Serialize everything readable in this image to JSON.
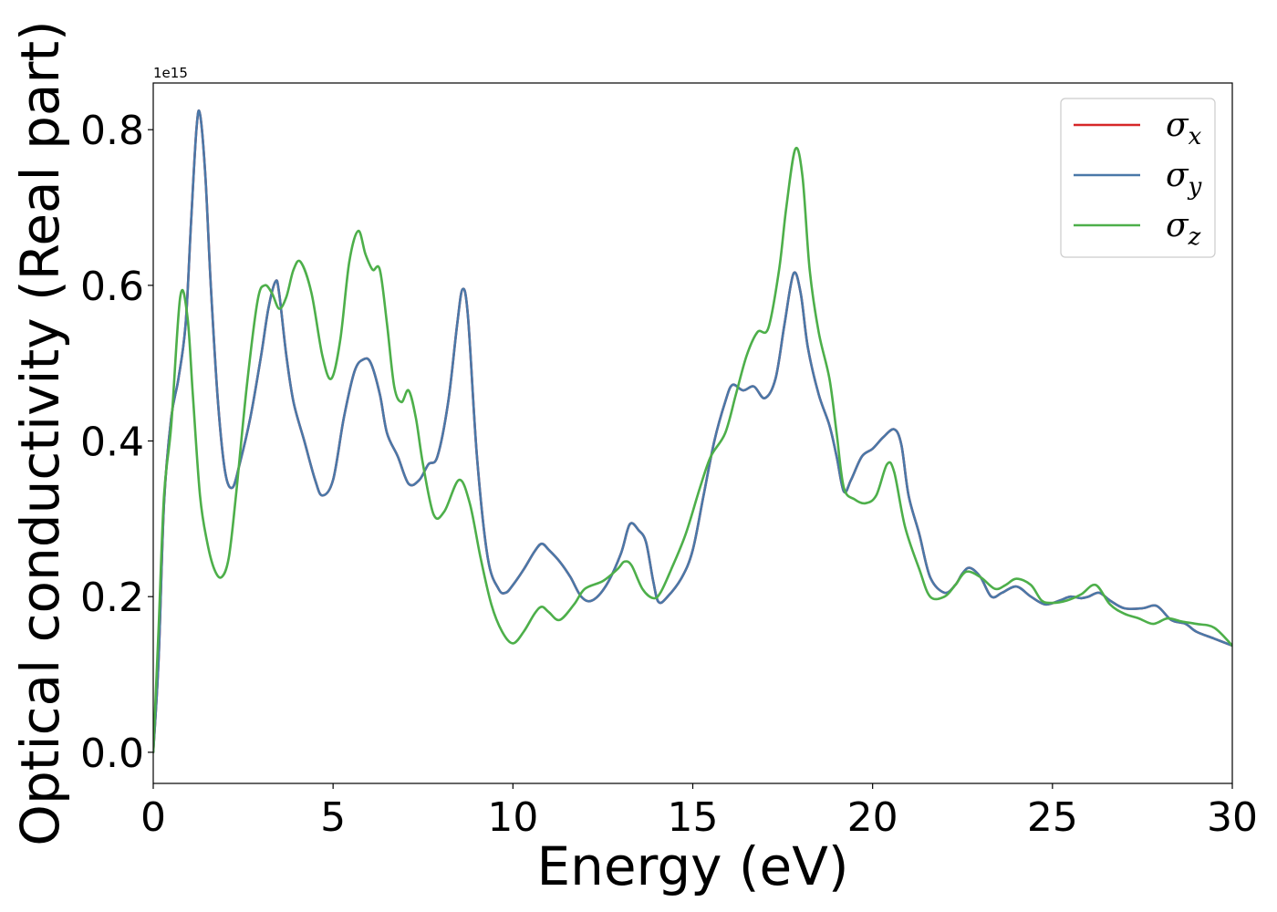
{
  "chart_data": {
    "type": "line",
    "xlabel": "Energy (eV)",
    "ylabel": "Optical conductivity (Real part)",
    "y_offset_label": "1e15",
    "y_scale": 1000000000000000.0,
    "xlim": [
      0,
      30
    ],
    "ylim": [
      -0.04,
      0.86
    ],
    "xticks": [
      0,
      5,
      10,
      15,
      20,
      25,
      30
    ],
    "yticks": [
      0.0,
      0.2,
      0.4,
      0.6,
      0.8
    ],
    "xtick_labels": [
      "0",
      "5",
      "10",
      "15",
      "20",
      "25",
      "30"
    ],
    "ytick_labels": [
      "0.0",
      "0.2",
      "0.4",
      "0.6",
      "0.8"
    ],
    "grid": false,
    "legend_position": "top-right",
    "series": [
      {
        "name": "σx",
        "symbol": "σ",
        "subscript": "x",
        "color": "#d62728",
        "x": [
          0,
          0.15,
          0.3,
          0.5,
          0.7,
          0.9,
          1.05,
          1.2,
          1.3,
          1.45,
          1.6,
          1.8,
          2.0,
          2.2,
          2.4,
          2.7,
          3.0,
          3.2,
          3.4,
          3.5,
          3.7,
          3.9,
          4.2,
          4.5,
          4.7,
          5.0,
          5.3,
          5.6,
          5.85,
          6.05,
          6.3,
          6.5,
          6.8,
          7.1,
          7.4,
          7.65,
          7.9,
          8.2,
          8.45,
          8.6,
          8.75,
          9.0,
          9.3,
          9.6,
          9.8,
          10.0,
          10.3,
          10.6,
          10.8,
          11.0,
          11.3,
          11.6,
          11.9,
          12.2,
          12.6,
          13.0,
          13.25,
          13.5,
          13.7,
          13.9,
          14.05,
          14.3,
          14.7,
          15.0,
          15.3,
          15.6,
          15.9,
          16.1,
          16.4,
          16.7,
          17.0,
          17.3,
          17.55,
          17.8,
          18.0,
          18.2,
          18.5,
          18.8,
          19.0,
          19.2,
          19.4,
          19.7,
          20.0,
          20.3,
          20.6,
          20.8,
          21.0,
          21.3,
          21.6,
          22.0,
          22.3,
          22.5,
          22.7,
          23.0,
          23.3,
          23.6,
          24.0,
          24.4,
          24.8,
          25.2,
          25.5,
          25.8,
          26.0,
          26.3,
          26.6,
          27.0,
          27.5,
          27.9,
          28.3,
          28.7,
          29.0,
          29.5,
          30.0
        ],
        "values": [
          0.0,
          0.12,
          0.32,
          0.43,
          0.48,
          0.55,
          0.68,
          0.8,
          0.82,
          0.74,
          0.6,
          0.45,
          0.36,
          0.34,
          0.37,
          0.43,
          0.51,
          0.57,
          0.605,
          0.59,
          0.51,
          0.45,
          0.4,
          0.35,
          0.33,
          0.35,
          0.43,
          0.49,
          0.505,
          0.5,
          0.46,
          0.41,
          0.38,
          0.345,
          0.35,
          0.37,
          0.38,
          0.45,
          0.55,
          0.595,
          0.56,
          0.38,
          0.25,
          0.21,
          0.205,
          0.215,
          0.235,
          0.258,
          0.268,
          0.26,
          0.245,
          0.225,
          0.2,
          0.195,
          0.215,
          0.255,
          0.293,
          0.285,
          0.27,
          0.22,
          0.193,
          0.2,
          0.225,
          0.26,
          0.33,
          0.4,
          0.45,
          0.472,
          0.465,
          0.47,
          0.455,
          0.48,
          0.55,
          0.615,
          0.59,
          0.52,
          0.46,
          0.42,
          0.38,
          0.335,
          0.35,
          0.38,
          0.39,
          0.405,
          0.415,
          0.395,
          0.33,
          0.28,
          0.225,
          0.205,
          0.215,
          0.23,
          0.237,
          0.225,
          0.2,
          0.205,
          0.213,
          0.2,
          0.19,
          0.195,
          0.2,
          0.198,
          0.2,
          0.205,
          0.195,
          0.185,
          0.185,
          0.188,
          0.17,
          0.165,
          0.155,
          0.146,
          0.137
        ]
      },
      {
        "name": "σy",
        "symbol": "σ",
        "subscript": "y",
        "color": "#4a78a8",
        "x": [
          0,
          0.15,
          0.3,
          0.5,
          0.7,
          0.9,
          1.05,
          1.2,
          1.3,
          1.45,
          1.6,
          1.8,
          2.0,
          2.2,
          2.4,
          2.7,
          3.0,
          3.2,
          3.4,
          3.5,
          3.7,
          3.9,
          4.2,
          4.5,
          4.7,
          5.0,
          5.3,
          5.6,
          5.85,
          6.05,
          6.3,
          6.5,
          6.8,
          7.1,
          7.4,
          7.65,
          7.9,
          8.2,
          8.45,
          8.6,
          8.75,
          9.0,
          9.3,
          9.6,
          9.8,
          10.0,
          10.3,
          10.6,
          10.8,
          11.0,
          11.3,
          11.6,
          11.9,
          12.2,
          12.6,
          13.0,
          13.25,
          13.5,
          13.7,
          13.9,
          14.05,
          14.3,
          14.7,
          15.0,
          15.3,
          15.6,
          15.9,
          16.1,
          16.4,
          16.7,
          17.0,
          17.3,
          17.55,
          17.8,
          18.0,
          18.2,
          18.5,
          18.8,
          19.0,
          19.2,
          19.4,
          19.7,
          20.0,
          20.3,
          20.6,
          20.8,
          21.0,
          21.3,
          21.6,
          22.0,
          22.3,
          22.5,
          22.7,
          23.0,
          23.3,
          23.6,
          24.0,
          24.4,
          24.8,
          25.2,
          25.5,
          25.8,
          26.0,
          26.3,
          26.6,
          27.0,
          27.5,
          27.9,
          28.3,
          28.7,
          29.0,
          29.5,
          30.0
        ],
        "values": [
          0.0,
          0.12,
          0.32,
          0.43,
          0.48,
          0.55,
          0.68,
          0.8,
          0.82,
          0.74,
          0.6,
          0.45,
          0.36,
          0.34,
          0.37,
          0.43,
          0.51,
          0.57,
          0.605,
          0.59,
          0.51,
          0.45,
          0.4,
          0.35,
          0.33,
          0.35,
          0.43,
          0.49,
          0.505,
          0.5,
          0.46,
          0.41,
          0.38,
          0.345,
          0.35,
          0.37,
          0.38,
          0.45,
          0.55,
          0.595,
          0.56,
          0.38,
          0.25,
          0.21,
          0.205,
          0.215,
          0.235,
          0.258,
          0.268,
          0.26,
          0.245,
          0.225,
          0.2,
          0.195,
          0.215,
          0.255,
          0.293,
          0.285,
          0.27,
          0.22,
          0.193,
          0.2,
          0.225,
          0.26,
          0.33,
          0.4,
          0.45,
          0.472,
          0.465,
          0.47,
          0.455,
          0.48,
          0.55,
          0.615,
          0.59,
          0.52,
          0.46,
          0.42,
          0.38,
          0.335,
          0.35,
          0.38,
          0.39,
          0.405,
          0.415,
          0.395,
          0.33,
          0.28,
          0.225,
          0.205,
          0.215,
          0.23,
          0.237,
          0.225,
          0.2,
          0.205,
          0.213,
          0.2,
          0.19,
          0.195,
          0.2,
          0.198,
          0.2,
          0.205,
          0.195,
          0.185,
          0.185,
          0.188,
          0.17,
          0.165,
          0.155,
          0.146,
          0.137
        ]
      },
      {
        "name": "σz",
        "symbol": "σ",
        "subscript": "z",
        "color": "#4daf4a",
        "x": [
          0,
          0.15,
          0.3,
          0.5,
          0.75,
          0.95,
          1.1,
          1.3,
          1.5,
          1.7,
          1.9,
          2.1,
          2.3,
          2.6,
          2.9,
          3.1,
          3.3,
          3.5,
          3.7,
          3.9,
          4.1,
          4.4,
          4.7,
          4.95,
          5.2,
          5.45,
          5.7,
          5.9,
          6.1,
          6.3,
          6.5,
          6.7,
          6.9,
          7.1,
          7.3,
          7.5,
          7.8,
          8.1,
          8.5,
          8.8,
          9.1,
          9.4,
          9.7,
          10.0,
          10.3,
          10.6,
          10.8,
          11.0,
          11.3,
          11.7,
          12.0,
          12.5,
          12.9,
          13.1,
          13.3,
          13.6,
          13.9,
          14.1,
          14.4,
          14.8,
          15.2,
          15.5,
          15.9,
          16.2,
          16.5,
          16.8,
          17.1,
          17.4,
          17.6,
          17.85,
          18.05,
          18.25,
          18.5,
          18.8,
          19.0,
          19.2,
          19.5,
          19.8,
          20.1,
          20.4,
          20.6,
          20.9,
          21.3,
          21.6,
          22.0,
          22.3,
          22.6,
          23.0,
          23.4,
          23.7,
          24.0,
          24.4,
          24.7,
          25.0,
          25.4,
          25.8,
          26.2,
          26.6,
          27.0,
          27.4,
          27.8,
          28.2,
          28.6,
          29.0,
          29.5,
          30.0
        ],
        "values": [
          0.0,
          0.16,
          0.33,
          0.42,
          0.585,
          0.56,
          0.46,
          0.33,
          0.27,
          0.235,
          0.225,
          0.25,
          0.33,
          0.47,
          0.58,
          0.6,
          0.59,
          0.57,
          0.585,
          0.62,
          0.63,
          0.59,
          0.51,
          0.48,
          0.53,
          0.63,
          0.67,
          0.64,
          0.62,
          0.62,
          0.55,
          0.47,
          0.45,
          0.465,
          0.43,
          0.37,
          0.305,
          0.31,
          0.35,
          0.32,
          0.25,
          0.19,
          0.155,
          0.14,
          0.155,
          0.178,
          0.187,
          0.18,
          0.17,
          0.19,
          0.21,
          0.22,
          0.235,
          0.245,
          0.24,
          0.21,
          0.198,
          0.205,
          0.235,
          0.28,
          0.34,
          0.38,
          0.41,
          0.46,
          0.51,
          0.54,
          0.545,
          0.62,
          0.7,
          0.775,
          0.74,
          0.62,
          0.54,
          0.48,
          0.41,
          0.34,
          0.325,
          0.32,
          0.33,
          0.37,
          0.36,
          0.29,
          0.235,
          0.2,
          0.2,
          0.215,
          0.232,
          0.225,
          0.21,
          0.215,
          0.223,
          0.215,
          0.195,
          0.192,
          0.195,
          0.203,
          0.215,
          0.19,
          0.178,
          0.172,
          0.165,
          0.172,
          0.168,
          0.165,
          0.16,
          0.137
        ]
      }
    ]
  }
}
